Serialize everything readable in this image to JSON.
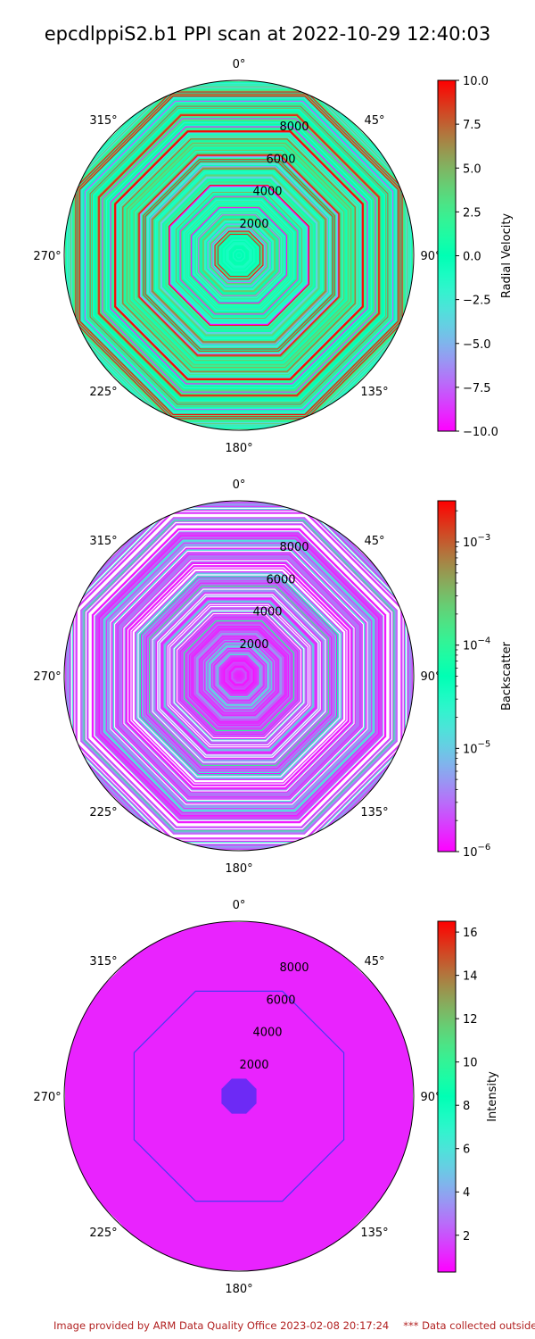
{
  "title": "epcdlppiS2.b1 PPI scan at 2022-10-29 12:40:03",
  "footer": {
    "left": "Image provided by ARM Data Quality Office 2023-02-08 20:17:24",
    "right": "*** Data collected outside"
  },
  "chart_data": [
    {
      "type": "heatmap",
      "projection": "polar",
      "theta_direction": "clockwise",
      "theta_zero": "top",
      "theta_ticks": [
        "0°",
        "45°",
        "90°",
        "135°",
        "180°",
        "225°",
        "270°",
        "315°"
      ],
      "r_ticks": [
        2000,
        4000,
        6000,
        8000
      ],
      "r_max": 10000,
      "azimuth_sectors": 8,
      "colormap": "rainbow",
      "colorbar": {
        "label": "Radial Velocity",
        "scale": "linear",
        "range": [
          -10,
          10
        ],
        "ticks": [
          {
            "value": 10,
            "label": "10.0"
          },
          {
            "value": 7.5,
            "label": "7.5"
          },
          {
            "value": 5,
            "label": "5.0"
          },
          {
            "value": 2.5,
            "label": "2.5"
          },
          {
            "value": 0,
            "label": "0.0"
          },
          {
            "value": -2.5,
            "label": "−2.5"
          },
          {
            "value": -5,
            "label": "−5.0"
          },
          {
            "value": -7.5,
            "label": "−7.5"
          },
          {
            "value": -10,
            "label": "−10.0"
          }
        ]
      },
      "dominant_values": "mostly -2.5 to 2.5 with scattered extremes up to ±10"
    },
    {
      "type": "heatmap",
      "projection": "polar",
      "theta_direction": "clockwise",
      "theta_zero": "top",
      "theta_ticks": [
        "0°",
        "45°",
        "90°",
        "135°",
        "180°",
        "225°",
        "270°",
        "315°"
      ],
      "r_ticks": [
        2000,
        4000,
        6000,
        8000
      ],
      "r_max": 10000,
      "azimuth_sectors": 8,
      "colormap": "rainbow",
      "colorbar": {
        "label": "Backscatter",
        "scale": "log",
        "range": [
          1e-06,
          0.0025
        ],
        "ticks": [
          {
            "value": 0.001,
            "label": "10",
            "exp": "−3"
          },
          {
            "value": 0.0001,
            "label": "10",
            "exp": "−4"
          },
          {
            "value": 1e-05,
            "label": "10",
            "exp": "−5"
          },
          {
            "value": 1e-06,
            "label": "10",
            "exp": "−6"
          }
        ]
      },
      "dominant_values": "mostly 1e-6 to 1e-5, gaps (white) at outer ranges"
    },
    {
      "type": "heatmap",
      "projection": "polar",
      "theta_direction": "clockwise",
      "theta_zero": "top",
      "theta_ticks": [
        "0°",
        "45°",
        "90°",
        "135°",
        "180°",
        "225°",
        "270°",
        "315°"
      ],
      "r_ticks": [
        2000,
        4000,
        6000,
        8000
      ],
      "r_max": 10000,
      "azimuth_sectors": 8,
      "colormap": "rainbow",
      "colorbar": {
        "label": "Intensity",
        "scale": "linear",
        "range": [
          0.3,
          16.5
        ],
        "ticks": [
          {
            "value": 16,
            "label": "16"
          },
          {
            "value": 14,
            "label": "14"
          },
          {
            "value": 12,
            "label": "12"
          },
          {
            "value": 10,
            "label": "10"
          },
          {
            "value": 8,
            "label": "8"
          },
          {
            "value": 6,
            "label": "6"
          },
          {
            "value": 4,
            "label": "4"
          },
          {
            "value": 2,
            "label": "2"
          }
        ]
      },
      "dominant_values": "uniformly ~1 across the scan"
    }
  ]
}
